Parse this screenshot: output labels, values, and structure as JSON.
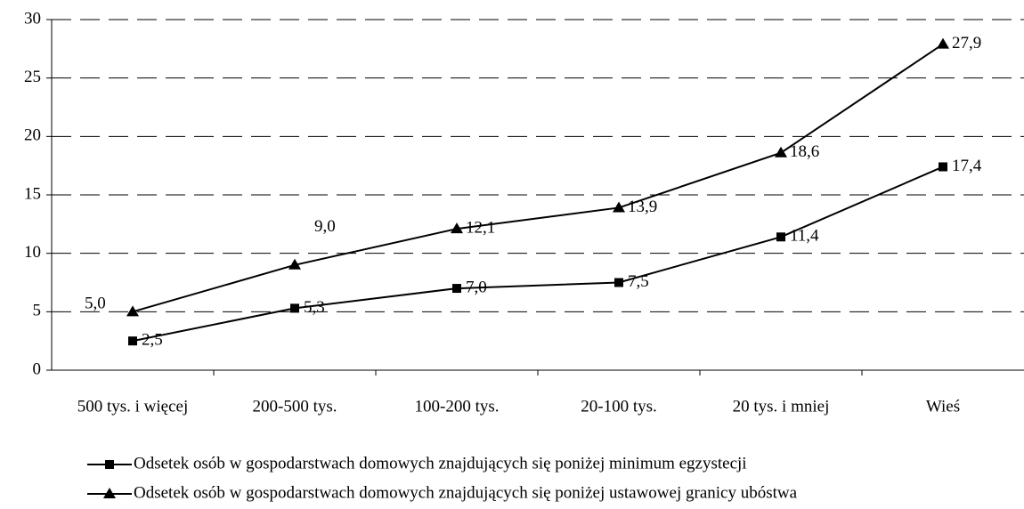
{
  "chart_data": {
    "type": "line",
    "categories": [
      "500 tys. i więcej",
      "200-500 tys.",
      "100-200 tys.",
      "20-100 tys.",
      "20 tys. i mniej",
      "Wieś"
    ],
    "series": [
      {
        "name": "Odsetek osób w gospodarstwach domowych znajdujących się poniżej minimum egzystecji",
        "color": "#000000",
        "marker": "square",
        "values": [
          2.5,
          5.3,
          7.0,
          7.5,
          11.4,
          17.4
        ],
        "value_labels": [
          "2,5",
          "5,3",
          "7,0",
          "7,5",
          "11,4",
          "17,4"
        ]
      },
      {
        "name": "Odsetek osób w gospodarstwach domowych znajdujących się poniżej ustawowej granicy ubóstwa",
        "color": "#000000",
        "marker": "triangle",
        "values": [
          5.0,
          9.0,
          12.1,
          13.9,
          18.6,
          27.9
        ],
        "value_labels": [
          "5,0",
          "9,0",
          "12,1",
          "13,9",
          "18,6",
          "27,9"
        ]
      }
    ],
    "ylim": [
      0,
      30
    ],
    "yticks": [
      0,
      5,
      10,
      15,
      20,
      25,
      30
    ],
    "grid": true,
    "legend": "bottom"
  }
}
